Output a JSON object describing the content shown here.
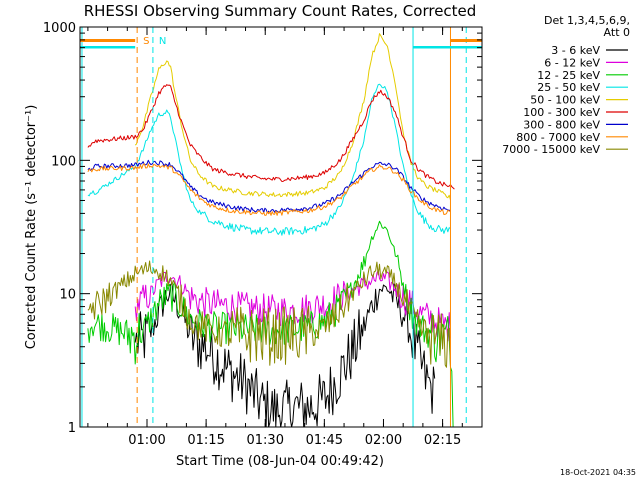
{
  "chart_data": {
    "type": "line",
    "title": "RHESSI Observing Summary Count Rates, Corrected",
    "xlabel": "Start Time (08-Jun-04 00:49:42)",
    "ylabel": "Corrected Count Rate (s⁻¹ detector⁻¹)",
    "y_scale": "log",
    "xlim": [
      -6,
      96
    ],
    "ylim": [
      1,
      1000
    ],
    "x_ticks": [
      {
        "x": 11,
        "label": "01:00"
      },
      {
        "x": 26,
        "label": "01:15"
      },
      {
        "x": 41,
        "label": "01:30"
      },
      {
        "x": 56,
        "label": "01:45"
      },
      {
        "x": 71,
        "label": "02:00"
      },
      {
        "x": 86,
        "label": "02:15"
      }
    ],
    "y_ticks": [
      {
        "y": 1,
        "label": "1"
      },
      {
        "y": 10,
        "label": "10"
      },
      {
        "y": 100,
        "label": "100"
      },
      {
        "y": 1000,
        "label": "1000"
      }
    ],
    "legend_header": [
      "Det 1,3,4,5,6,9,",
      "Att 0"
    ],
    "legend_position": "right",
    "series": [
      {
        "name": "3 - 6 keV",
        "color": "#000000",
        "x": [
          -4,
          -3,
          -2,
          8,
          10,
          12,
          14,
          16,
          17,
          18,
          20,
          22,
          24,
          26,
          28,
          32,
          36,
          40,
          44,
          48,
          52,
          56,
          60,
          63,
          66,
          68,
          70,
          72,
          74,
          76,
          78,
          80,
          82,
          84,
          86,
          88,
          89,
          90
        ],
        "y": [
          null,
          null,
          null,
          4.3,
          4.5,
          5.2,
          7.2,
          9.8,
          10.2,
          9,
          7,
          4.8,
          4.2,
          4,
          3.4,
          2.6,
          2.1,
          1.5,
          1.3,
          1.4,
          1.4,
          1.6,
          2.5,
          3.6,
          5.6,
          8,
          10.8,
          11,
          9,
          7,
          5,
          3.2,
          2.2,
          1.8,
          null,
          null,
          null,
          null
        ]
      },
      {
        "name": "6 - 12 keV",
        "color": "#dd00dd",
        "x": [
          -4,
          -3,
          -2,
          8,
          10,
          12,
          14,
          16,
          17,
          18,
          20,
          22,
          24,
          26,
          28,
          32,
          36,
          40,
          44,
          48,
          52,
          56,
          60,
          63,
          66,
          68,
          70,
          72,
          74,
          76,
          78,
          80,
          82,
          84,
          86,
          88,
          89,
          90
        ],
        "y": [
          null,
          null,
          null,
          8,
          9,
          10,
          12,
          13.5,
          14,
          13,
          11.5,
          9.5,
          8.8,
          8.5,
          8.3,
          8.1,
          7.8,
          7.6,
          7.5,
          7.5,
          7.8,
          8.3,
          9.5,
          10.5,
          11.8,
          12.5,
          13,
          12.5,
          11,
          9.5,
          8.3,
          7.2,
          6.7,
          6.3,
          5.9,
          5.6,
          null,
          null
        ]
      },
      {
        "name": "12 - 25 keV",
        "color": "#00cc00",
        "x": [
          -4,
          -3,
          -2,
          8,
          10,
          12,
          14,
          16,
          17,
          18,
          20,
          22,
          24,
          26,
          28,
          32,
          36,
          40,
          44,
          48,
          52,
          56,
          60,
          63,
          66,
          68,
          70,
          72,
          74,
          76,
          78,
          80,
          82,
          84,
          86,
          88,
          89,
          90
        ],
        "y": [
          5.5,
          6,
          6,
          4.8,
          5.2,
          6.5,
          8.5,
          9.5,
          9.8,
          9.2,
          7.8,
          6.5,
          6,
          5.8,
          5.6,
          5.5,
          5.4,
          5.3,
          5.3,
          5.4,
          5.6,
          6.2,
          8,
          11,
          17,
          26,
          34,
          30,
          20,
          12,
          7.5,
          5.8,
          5.2,
          4.9,
          4.7,
          4.5,
          0.8,
          null
        ]
      },
      {
        "name": "25 - 50 keV",
        "color": "#00e5e5",
        "x": [
          -4,
          -3,
          -2,
          8,
          10,
          12,
          14,
          16,
          17,
          18,
          20,
          22,
          24,
          26,
          28,
          32,
          36,
          40,
          44,
          48,
          52,
          56,
          60,
          63,
          66,
          68,
          70,
          72,
          74,
          76,
          78,
          80,
          82,
          84,
          86,
          88,
          89,
          90
        ],
        "y": [
          55,
          58,
          58,
          90,
          120,
          170,
          220,
          230,
          210,
          150,
          80,
          50,
          42,
          38,
          35,
          32,
          30,
          29.5,
          29,
          29.5,
          30,
          33,
          45,
          70,
          140,
          280,
          380,
          330,
          180,
          90,
          55,
          40,
          34,
          31,
          30,
          30,
          null,
          null
        ]
      },
      {
        "name": "50 - 100 keV",
        "color": "#e5cc00",
        "x": [
          -4,
          -3,
          -2,
          8,
          10,
          12,
          14,
          16,
          17,
          18,
          20,
          22,
          24,
          26,
          28,
          32,
          36,
          40,
          44,
          48,
          52,
          56,
          60,
          63,
          66,
          68,
          70,
          72,
          74,
          76,
          78,
          80,
          82,
          84,
          86,
          88,
          89,
          90
        ],
        "y": [
          null,
          null,
          null,
          130,
          180,
          300,
          480,
          560,
          500,
          330,
          170,
          100,
          80,
          70,
          63,
          60,
          57,
          56,
          55,
          56,
          57,
          62,
          80,
          130,
          280,
          600,
          860,
          720,
          380,
          160,
          95,
          72,
          64,
          60,
          56,
          52,
          null,
          null
        ]
      },
      {
        "name": "100 - 300 keV",
        "color": "#dd0000",
        "x": [
          -4,
          -3,
          -2,
          8,
          10,
          12,
          14,
          16,
          17,
          18,
          20,
          22,
          24,
          26,
          28,
          32,
          36,
          40,
          44,
          48,
          52,
          56,
          60,
          63,
          66,
          68,
          70,
          72,
          74,
          76,
          78,
          80,
          82,
          84,
          86,
          88,
          89,
          90
        ],
        "y": [
          125,
          135,
          140,
          150,
          170,
          230,
          320,
          370,
          350,
          280,
          185,
          130,
          110,
          95,
          85,
          80,
          76,
          73,
          72,
          73,
          75,
          80,
          100,
          140,
          200,
          280,
          330,
          300,
          230,
          150,
          100,
          85,
          76,
          70,
          66,
          64,
          60,
          null
        ]
      },
      {
        "name": "300 - 800 keV",
        "color": "#0000cc",
        "x": [
          -4,
          -3,
          -2,
          8,
          10,
          12,
          14,
          16,
          17,
          18,
          20,
          22,
          24,
          26,
          28,
          32,
          36,
          40,
          44,
          48,
          52,
          56,
          60,
          63,
          66,
          68,
          70,
          72,
          74,
          76,
          78,
          80,
          82,
          84,
          86,
          88,
          89,
          90
        ],
        "y": [
          85,
          88,
          90,
          92,
          95,
          97,
          96,
          94,
          93,
          88,
          76,
          63,
          56,
          51,
          48,
          45,
          43,
          42,
          42,
          43,
          44,
          47,
          55,
          67,
          80,
          90,
          94,
          93,
          87,
          75,
          62,
          54,
          49,
          46,
          44,
          42,
          null,
          null
        ]
      },
      {
        "name": "800 - 7000 keV",
        "color": "#ff8800",
        "x": [
          -4,
          -3,
          -2,
          8,
          10,
          12,
          14,
          16,
          17,
          18,
          20,
          22,
          24,
          26,
          28,
          32,
          36,
          40,
          44,
          48,
          52,
          56,
          60,
          63,
          66,
          68,
          70,
          72,
          74,
          76,
          78,
          80,
          82,
          84,
          86,
          88,
          89,
          90
        ],
        "y": [
          82,
          85,
          86,
          88,
          90,
          92,
          91,
          89,
          88,
          83,
          72,
          60,
          53,
          48,
          45,
          42,
          41,
          40,
          40,
          41,
          42,
          45,
          52,
          64,
          76,
          85,
          89,
          88,
          82,
          71,
          59,
          51,
          46,
          43,
          41,
          39,
          null,
          null
        ]
      },
      {
        "name": "7000 - 15000 keV",
        "color": "#888800",
        "x": [
          -4,
          -3,
          -2,
          8,
          10,
          12,
          14,
          16,
          17,
          18,
          20,
          22,
          24,
          26,
          28,
          32,
          36,
          40,
          44,
          48,
          52,
          56,
          60,
          63,
          66,
          68,
          70,
          72,
          74,
          76,
          78,
          80,
          82,
          84,
          86,
          88,
          89,
          90
        ],
        "y": [
          7.5,
          8,
          8,
          14,
          15,
          15.5,
          15,
          13.5,
          12.5,
          11,
          8.5,
          6.5,
          5.8,
          5.5,
          5.2,
          5,
          4.9,
          4.8,
          4.8,
          4.9,
          5,
          5.5,
          7.5,
          10,
          12.5,
          14.5,
          15,
          14,
          12,
          9.5,
          7,
          5.6,
          5,
          4.6,
          4.3,
          4.2,
          null,
          null
        ]
      }
    ],
    "annotations": {
      "attenuator_top_markers": [
        {
          "x_start": -6,
          "x_end": 8,
          "color": "#ff8800"
        },
        {
          "x_start": 88,
          "x_end": 96,
          "color": "#ff8800"
        }
      ],
      "saa_markers": [
        {
          "x_start": -6,
          "x_end": 8,
          "color": "#00e5e5"
        },
        {
          "x_start": 78.5,
          "x_end": 96,
          "color": "#00e5e5"
        }
      ],
      "vertical_lines": [
        {
          "x": -5.5,
          "color": "#00e5e5",
          "style": "solid"
        },
        {
          "x": 8.5,
          "color": "#ff8800",
          "style": "dashed",
          "label": "S"
        },
        {
          "x": 12.5,
          "color": "#00e5e5",
          "style": "dashed",
          "label": "N"
        },
        {
          "x": 78.5,
          "color": "#00e5e5",
          "style": "solid"
        },
        {
          "x": 88,
          "color": "#ff8800",
          "style": "solid"
        },
        {
          "x": 92,
          "color": "#00e5e5",
          "style": "dashed"
        }
      ]
    },
    "timestamp": "18-Oct-2021 04:35"
  }
}
